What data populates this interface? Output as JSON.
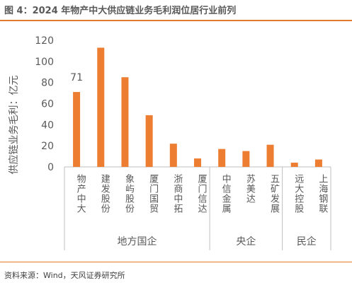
{
  "header": {
    "title": "图 4：2024 年物产中大供应链业务毛利润位居行业前列"
  },
  "footer": {
    "source": "资料来源：Wind，天风证券研究所"
  },
  "colors": {
    "bar": "#ED7D31",
    "rule": "#E37A2C",
    "axis": "#BFBFBF",
    "text": "#595959"
  },
  "chart_data": {
    "type": "bar",
    "title": "",
    "ylabel": "供应链业务毛利：亿元",
    "xlabel": "",
    "ylim": [
      0,
      120
    ],
    "yticks": [
      0,
      20,
      40,
      60,
      80,
      100,
      120
    ],
    "grid": false,
    "categories": [
      "物产中大",
      "建发股份",
      "象屿股份",
      "厦门国贸",
      "浙商中拓",
      "厦门信达",
      "中信金属",
      "苏美达",
      "五矿发展",
      "远大控股",
      "上海钢联"
    ],
    "values": [
      71,
      113,
      85,
      49,
      22,
      8,
      17,
      15,
      21,
      4,
      7
    ],
    "data_labels": [
      {
        "index": 0,
        "text": "71"
      }
    ],
    "groups": [
      {
        "label": "地方国企",
        "start": 0,
        "end": 5
      },
      {
        "label": "央企",
        "start": 6,
        "end": 8
      },
      {
        "label": "民企",
        "start": 9,
        "end": 10
      }
    ]
  }
}
